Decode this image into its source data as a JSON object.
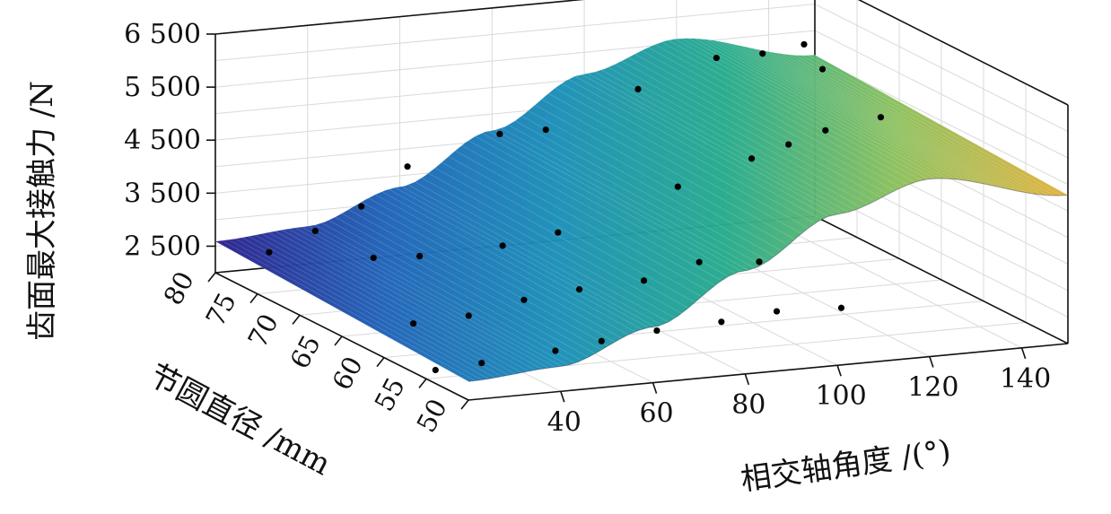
{
  "chart_data": {
    "type": "surface3d",
    "title": "",
    "xlabel": "相交轴角度 /(°)",
    "ylabel": "节圆直径 /mm",
    "zlabel": "齿面最大接触力 /N",
    "xlim": [
      20,
      150
    ],
    "ylim": [
      50,
      80
    ],
    "zlim": [
      2000,
      6500
    ],
    "x_ticks": [
      "40",
      "60",
      "80",
      "100",
      "120",
      "140"
    ],
    "y_ticks": [
      "80",
      "75",
      "70",
      "65",
      "60",
      "55",
      "50"
    ],
    "z_ticks": [
      "6 500",
      "5 500",
      "4 500",
      "3 500",
      "2 500"
    ],
    "grid": true,
    "colormap": [
      "#2a1f8c",
      "#1f63b8",
      "#1b8fb8",
      "#27ab8c",
      "#8cc05c",
      "#e2b23c"
    ],
    "surface_profile": {
      "x": [
        20,
        40,
        60,
        80,
        100,
        120,
        150
      ],
      "z": [
        2350,
        2470,
        3050,
        3950,
        4850,
        5350,
        4800
      ]
    },
    "points": [
      {
        "x": 28,
        "y": 78,
        "z": 2480
      },
      {
        "x": 38,
        "y": 78,
        "z": 2800
      },
      {
        "x": 48,
        "y": 78,
        "z": 3180
      },
      {
        "x": 58,
        "y": 78,
        "z": 3850
      },
      {
        "x": 78,
        "y": 78,
        "z": 4300
      },
      {
        "x": 88,
        "y": 78,
        "z": 4300
      },
      {
        "x": 108,
        "y": 78,
        "z": 4900
      },
      {
        "x": 125,
        "y": 78,
        "z": 5350
      },
      {
        "x": 135,
        "y": 78,
        "z": 5350
      },
      {
        "x": 144,
        "y": 78,
        "z": 5450
      },
      {
        "x": 148,
        "y": 78,
        "z": 4950
      },
      {
        "x": 36,
        "y": 70,
        "z": 2950
      },
      {
        "x": 46,
        "y": 70,
        "z": 2900
      },
      {
        "x": 64,
        "y": 70,
        "z": 2950
      },
      {
        "x": 76,
        "y": 70,
        "z": 3100
      },
      {
        "x": 102,
        "y": 70,
        "z": 3750
      },
      {
        "x": 118,
        "y": 70,
        "z": 4150
      },
      {
        "x": 126,
        "y": 70,
        "z": 4350
      },
      {
        "x": 134,
        "y": 70,
        "z": 4550
      },
      {
        "x": 146,
        "y": 70,
        "z": 4700
      },
      {
        "x": 30,
        "y": 62,
        "z": 2400
      },
      {
        "x": 42,
        "y": 62,
        "z": 2450
      },
      {
        "x": 54,
        "y": 62,
        "z": 2650
      },
      {
        "x": 66,
        "y": 62,
        "z": 2750
      },
      {
        "x": 80,
        "y": 62,
        "z": 2800
      },
      {
        "x": 92,
        "y": 62,
        "z": 3050
      },
      {
        "x": 105,
        "y": 62,
        "z": 2950
      },
      {
        "x": 22,
        "y": 55,
        "z": 2150
      },
      {
        "x": 32,
        "y": 55,
        "z": 2200
      },
      {
        "x": 48,
        "y": 55,
        "z": 2300
      },
      {
        "x": 58,
        "y": 55,
        "z": 2400
      },
      {
        "x": 70,
        "y": 55,
        "z": 2500
      },
      {
        "x": 84,
        "y": 55,
        "z": 2550
      },
      {
        "x": 96,
        "y": 55,
        "z": 2650
      },
      {
        "x": 110,
        "y": 55,
        "z": 2600
      }
    ]
  }
}
